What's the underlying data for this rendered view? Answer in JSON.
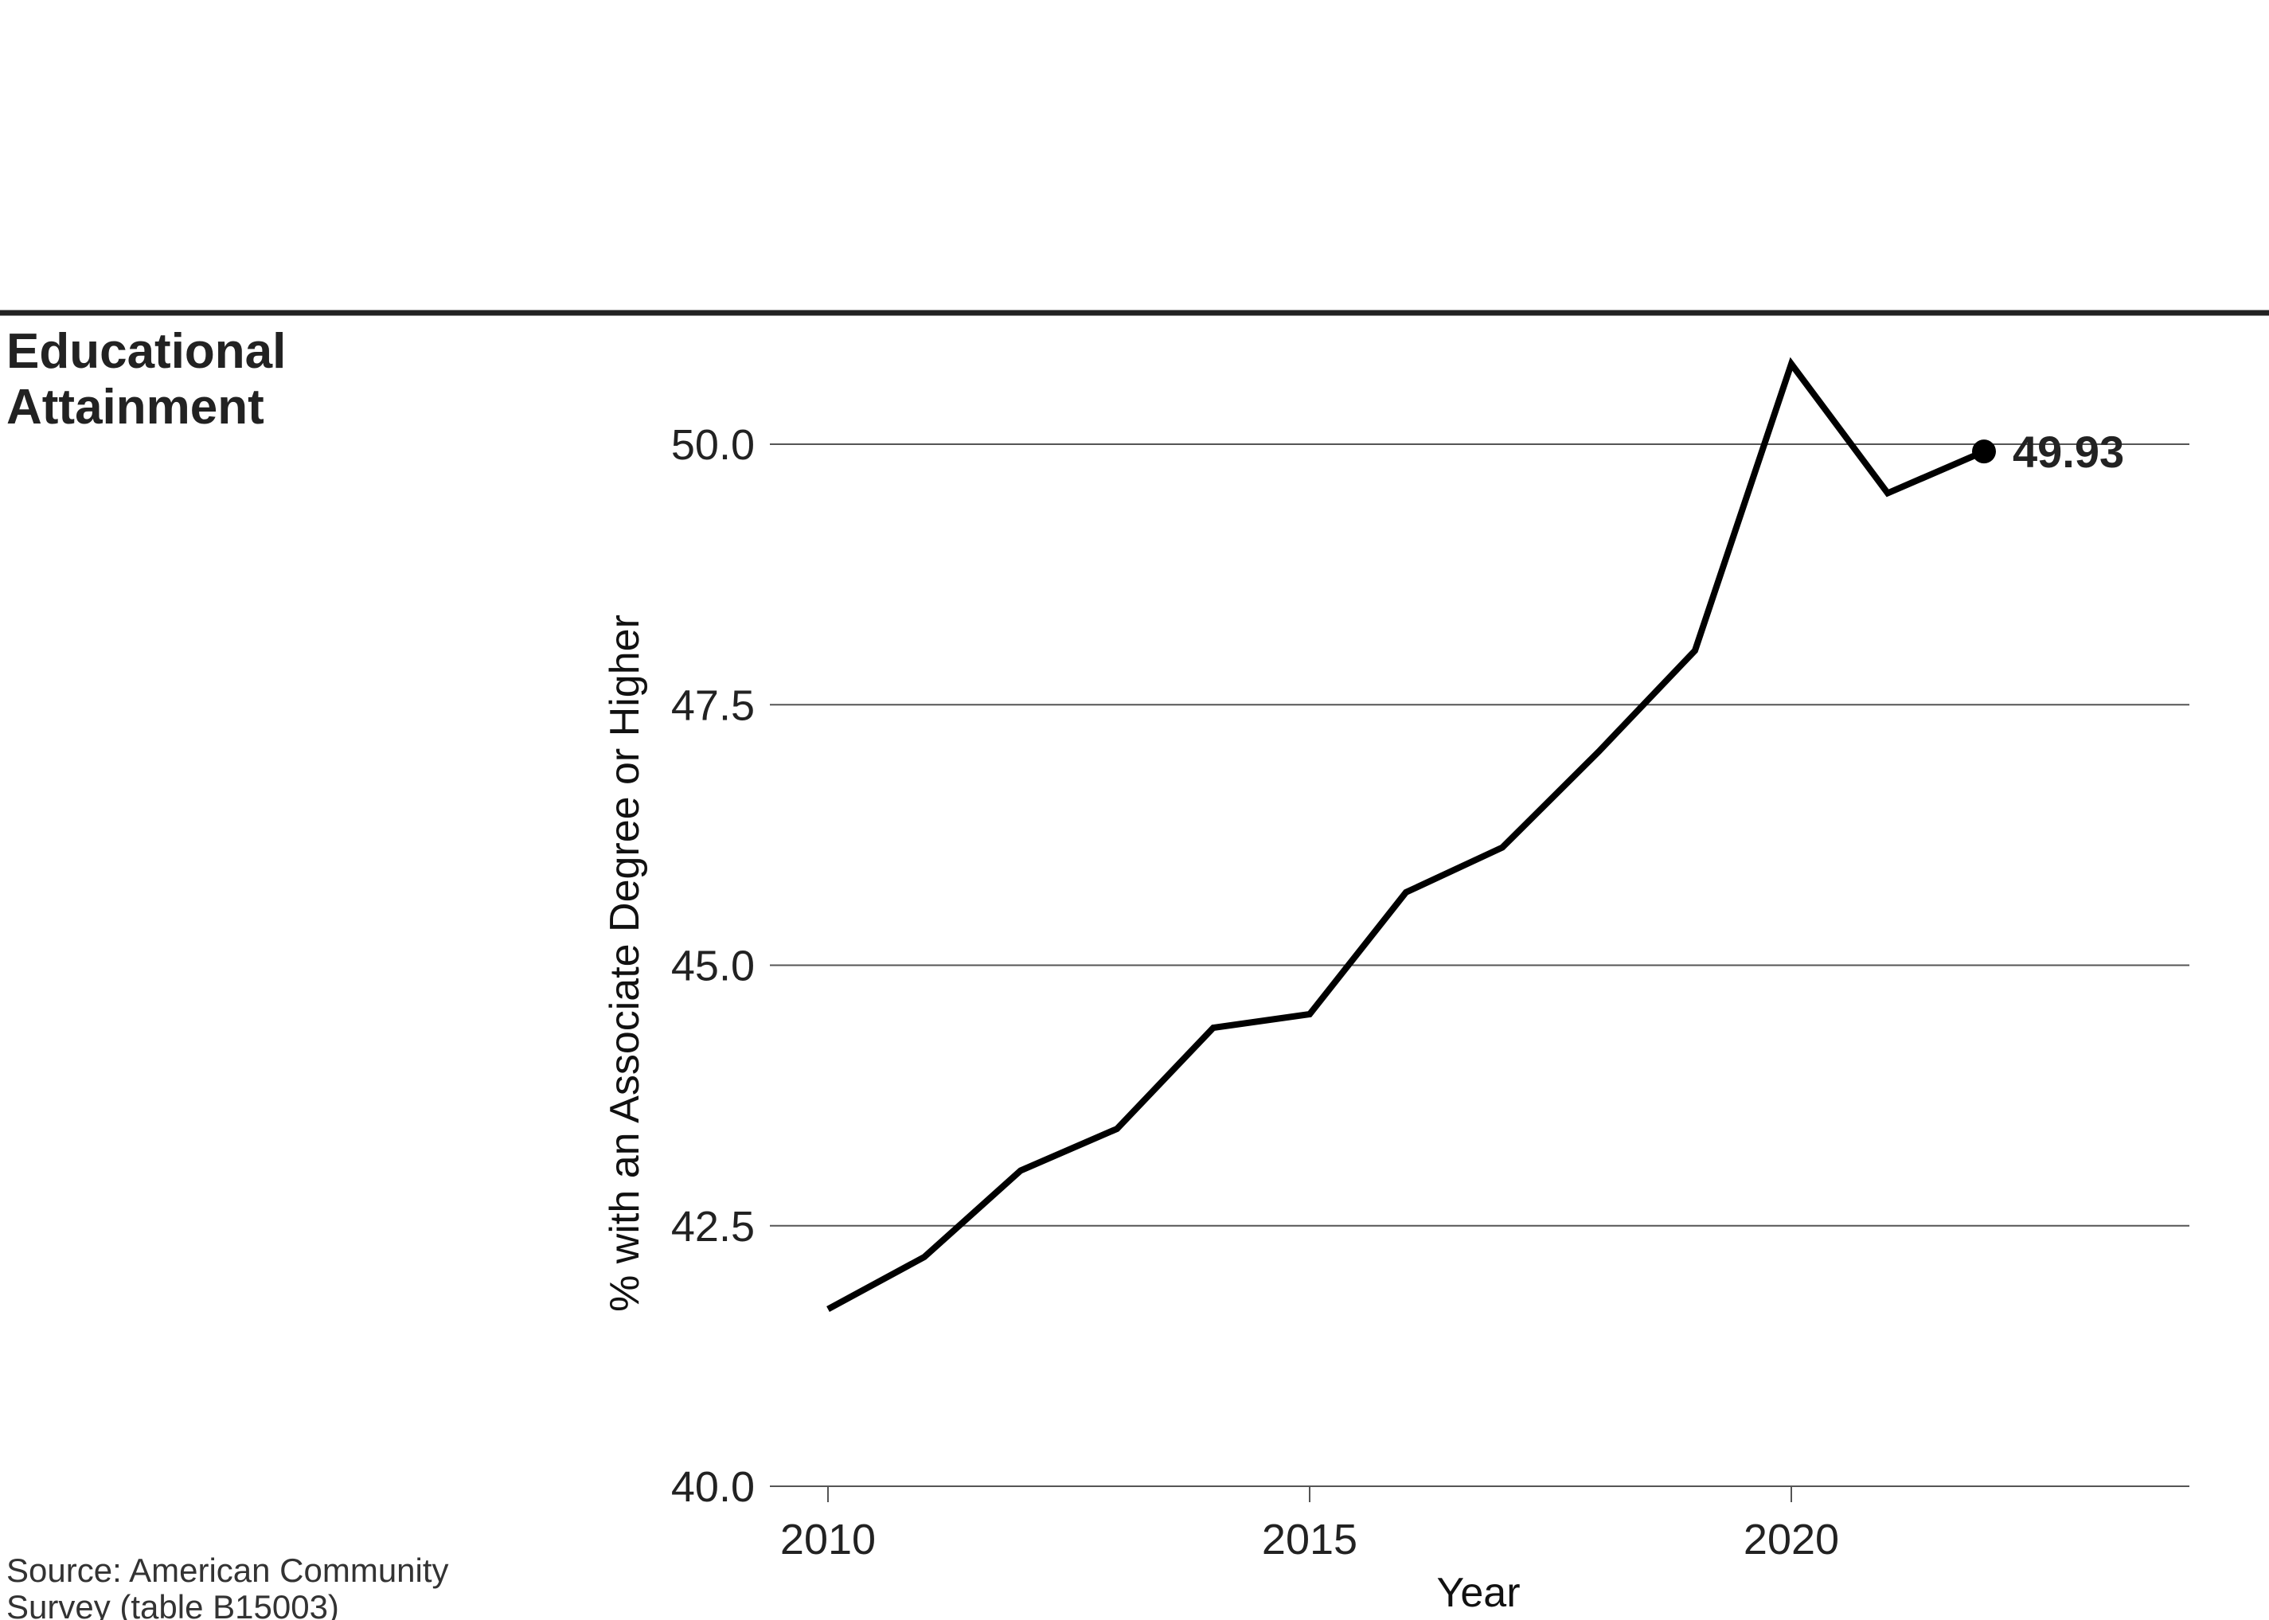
{
  "chart_data": {
    "type": "line",
    "title_lines": [
      "Educational",
      "Attainment"
    ],
    "xlabel": "Year",
    "ylabel": "% with an Associate Degree or Higher",
    "xlim": [
      2009.8,
      2024
    ],
    "ylim": [
      40.0,
      50.9
    ],
    "x_ticks": [
      2010,
      2015,
      2020
    ],
    "y_ticks": [
      40.0,
      42.5,
      45.0,
      47.5,
      50.0
    ],
    "y_tick_labels": [
      "40.0",
      "42.5",
      "45.0",
      "47.5",
      "50.0"
    ],
    "x_tick_labels": [
      "2010",
      "2015",
      "2020"
    ],
    "grid": "horizontal",
    "series": [
      {
        "x": [
          2010,
          2011,
          2012,
          2013,
          2014,
          2015,
          2016,
          2017,
          2018,
          2019,
          2020,
          2021,
          2022
        ],
        "values": [
          41.7,
          42.2,
          43.03,
          43.43,
          44.4,
          44.53,
          45.7,
          46.13,
          47.05,
          48.02,
          50.77,
          49.53,
          49.93
        ]
      }
    ],
    "end_label": "49.93",
    "colors": {
      "line": "#000000",
      "grid": "#555555",
      "rule": "#222222"
    },
    "source_lines": [
      "Source: American Community",
      "Survey (table B15003)"
    ]
  }
}
